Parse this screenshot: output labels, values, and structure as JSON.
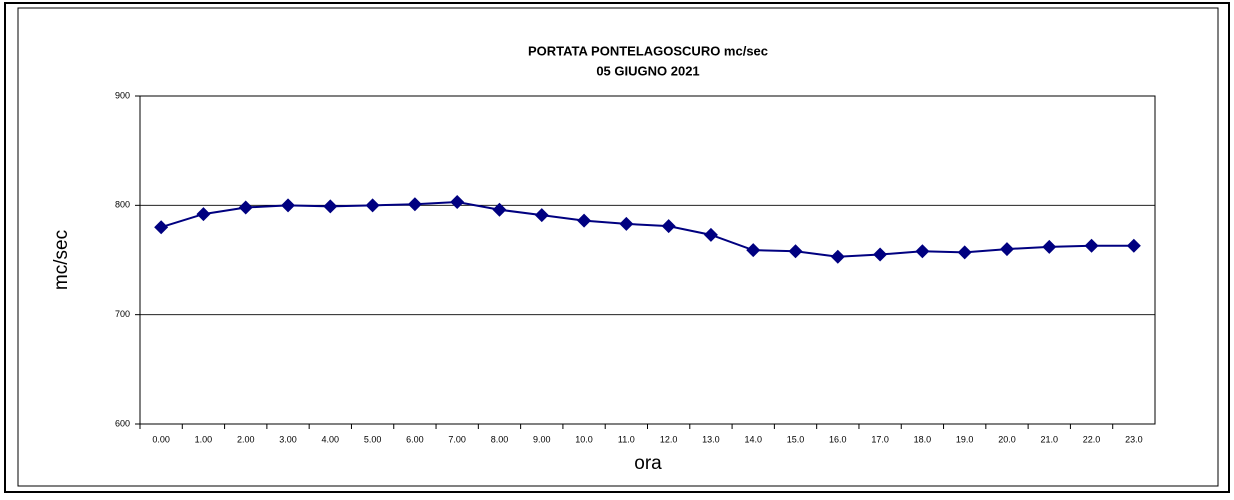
{
  "chart_data": {
    "type": "line",
    "title": "PORTATA PONTELAGOSCURO mc/sec",
    "subtitle": "05 GIUGNO 2021",
    "x_label": "ora",
    "y_label": "mc/sec",
    "categories": [
      "0.00",
      "1.00",
      "2.00",
      "3.00",
      "4.00",
      "5.00",
      "6.00",
      "7.00",
      "8.00",
      "9.00",
      "10.0",
      "11.0",
      "12.0",
      "13.0",
      "14.0",
      "15.0",
      "16.0",
      "17.0",
      "18.0",
      "19.0",
      "20.0",
      "21.0",
      "22.0",
      "23.0"
    ],
    "series": [
      {
        "name": "mc/sec",
        "color": "#000080",
        "values": [
          780,
          792,
          798,
          800,
          799,
          800,
          801,
          803,
          796,
          791,
          786,
          783,
          781,
          773,
          759,
          758,
          753,
          755,
          758,
          757,
          760,
          762,
          763,
          763
        ]
      }
    ],
    "ylim": [
      600,
      900
    ],
    "yticks": [
      600,
      700,
      800,
      900
    ],
    "grid": true
  }
}
